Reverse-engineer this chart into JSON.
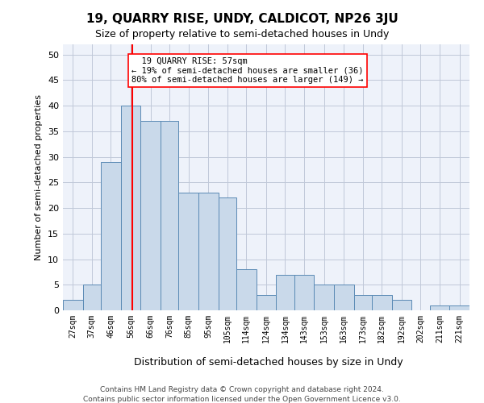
{
  "title": "19, QUARRY RISE, UNDY, CALDICOT, NP26 3JU",
  "subtitle": "Size of property relative to semi-detached houses in Undy",
  "xlabel": "Distribution of semi-detached houses by size in Undy",
  "ylabel": "Number of semi-detached properties",
  "bar_color": "#c9d9ea",
  "bar_edge_color": "#5a8ab5",
  "grid_color": "#c0c8d8",
  "background_color": "#eef2fa",
  "categories": [
    "27sqm",
    "37sqm",
    "46sqm",
    "56sqm",
    "66sqm",
    "76sqm",
    "85sqm",
    "95sqm",
    "105sqm",
    "114sqm",
    "124sqm",
    "134sqm",
    "143sqm",
    "153sqm",
    "163sqm",
    "173sqm",
    "182sqm",
    "192sqm",
    "202sqm",
    "211sqm",
    "221sqm"
  ],
  "values": [
    2,
    5,
    29,
    40,
    37,
    37,
    23,
    23,
    22,
    8,
    3,
    7,
    7,
    5,
    5,
    3,
    3,
    2,
    0,
    1,
    1
  ],
  "bin_edges": [
    22,
    32,
    41,
    51,
    61,
    71,
    80,
    90,
    100,
    109,
    119,
    129,
    138,
    148,
    158,
    168,
    177,
    187,
    197,
    206,
    216,
    226
  ],
  "property_line_x": 57,
  "property_line_label": "19 QUARRY RISE: 57sqm",
  "annotation_smaller": "← 19% of semi-detached houses are smaller (36)",
  "annotation_larger": "80% of semi-detached houses are larger (149) →",
  "footer1": "Contains HM Land Registry data © Crown copyright and database right 2024.",
  "footer2": "Contains public sector information licensed under the Open Government Licence v3.0.",
  "ylim_max": 52,
  "yticks": [
    0,
    5,
    10,
    15,
    20,
    25,
    30,
    35,
    40,
    45,
    50
  ]
}
